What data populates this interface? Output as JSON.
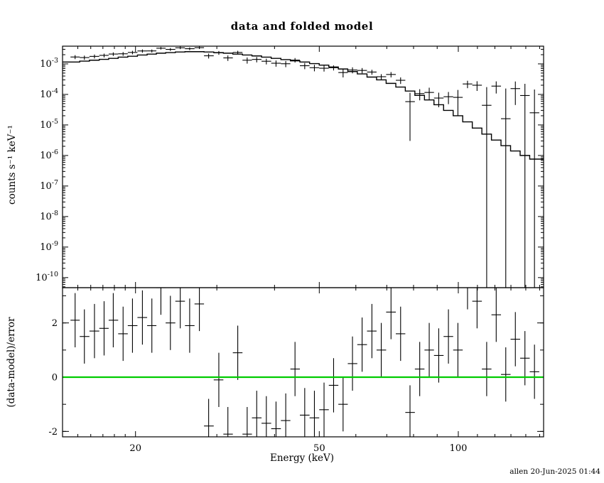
{
  "title": "data and folded model",
  "credit": "allen 20-Jun-2025 01:44",
  "colors": {
    "foreground": "#000000",
    "background": "#ffffff",
    "zero_line": "#00cc00"
  },
  "chart_data": {
    "type": "scatter",
    "title": "data and folded model",
    "xlabel": "Energy (keV)",
    "x_scale": "log",
    "x_range": [
      13.9,
      153.0
    ],
    "x_ticks_labeled": [
      20,
      50,
      100
    ],
    "x_ticks_minor": [
      15,
      16,
      17,
      18,
      19,
      30,
      40,
      60,
      70,
      80,
      90,
      110,
      120,
      130,
      140,
      150
    ],
    "legend": "none",
    "grid": false,
    "top_panel": {
      "ylabel": "counts s⁻¹ keV⁻¹",
      "y_scale": "log",
      "y_range_log10": [
        -10.33,
        -2.42
      ],
      "y_tick_exponents": [
        -3,
        -4,
        -5,
        -6,
        -7,
        -8,
        -9,
        -10
      ],
      "energy": [
        14.8,
        15.5,
        16.3,
        17.1,
        17.9,
        18.8,
        19.7,
        20.7,
        21.7,
        22.7,
        23.8,
        25.0,
        26.2,
        27.5,
        28.8,
        30.3,
        31.7,
        33.3,
        34.9,
        36.6,
        38.4,
        40.3,
        42.3,
        44.3,
        46.5,
        48.8,
        51.2,
        53.7,
        56.3,
        59.0,
        61.9,
        65.0,
        68.1,
        71.5,
        75.0,
        78.6,
        82.5,
        86.5,
        90.7,
        95.2,
        99.8,
        104.7,
        109.8,
        115.2,
        120.8,
        126.7,
        132.9,
        139.4,
        146.2
      ],
      "data": [
        0.00168,
        0.00161,
        0.00176,
        0.0019,
        0.0021,
        0.00214,
        0.00237,
        0.00265,
        0.00266,
        0.00326,
        0.00298,
        0.00337,
        0.00314,
        0.0034,
        0.00184,
        0.00231,
        0.00157,
        0.00237,
        0.00132,
        0.0014,
        0.00122,
        0.00105,
        0.00101,
        0.00133,
        0.00087,
        0.00075,
        0.00072,
        0.00075,
        0.00052,
        0.00063,
        0.00061,
        0.00054,
        0.00038,
        0.00045,
        0.00029,
        5.8e-05,
        0.000106,
        0.000116,
        7.6e-05,
        8.4e-05,
        8e-05,
        0.00022,
        0.0002,
        4.4e-05,
        0.000187,
        1.6e-05,
        0.000155,
        9.2e-05,
        2.5e-05
      ],
      "data_err": [
        0.00025,
        0.00025,
        0.00026,
        0.00027,
        0.00028,
        0.0003,
        0.00031,
        0.00032,
        0.0003,
        0.00031,
        0.00032,
        0.00033,
        0.00033,
        0.00033,
        0.00034,
        0.00033,
        0.00032,
        0.00031,
        0.0003,
        0.00028,
        0.00026,
        0.00024,
        0.00023,
        0.00022,
        0.0002,
        0.00018,
        0.00016,
        0.00014,
        0.00016,
        0.00014,
        0.00012,
        0.0001,
        8e-05,
        9e-05,
        7e-05,
        5.5e-05,
        4.2e-05,
        5e-05,
        3.8e-05,
        3.6e-05,
        6e-05,
        6e-05,
        7e-05,
        0.00013,
        8e-05,
        0.00014,
        0.00011,
        0.00013,
        0.00012
      ],
      "model": [
        0.00115,
        0.00123,
        0.00132,
        0.00141,
        0.00151,
        0.00166,
        0.00178,
        0.00195,
        0.00209,
        0.00224,
        0.00234,
        0.00245,
        0.00251,
        0.00251,
        0.00245,
        0.00234,
        0.00224,
        0.00209,
        0.00195,
        0.00182,
        0.00166,
        0.00151,
        0.00138,
        0.00126,
        0.00115,
        0.00102,
        0.00091,
        0.00079,
        0.00068,
        0.00056,
        0.00047,
        0.00037,
        0.0003,
        0.00023,
        0.000174,
        0.000129,
        9.3e-05,
        6.6e-05,
        4.6e-05,
        3e-05,
        2e-05,
        1.26e-05,
        7.9e-06,
        5e-06,
        3.2e-06,
        2.1e-06,
        1.4e-06,
        1e-06,
        7.6e-07
      ]
    },
    "bottom_panel": {
      "ylabel": "(data-model)/error",
      "y_scale": "linear",
      "y_range": [
        -2.2,
        3.3
      ],
      "y_ticks_labeled": [
        -2,
        0,
        2
      ],
      "y_ticks_minor": [
        -2,
        -1,
        0,
        1,
        2,
        3
      ],
      "residuals": [
        2.1,
        1.5,
        1.7,
        1.8,
        2.1,
        1.6,
        1.9,
        2.2,
        1.9,
        3.3,
        2.0,
        2.8,
        1.9,
        2.7,
        -1.8,
        -0.1,
        -2.1,
        0.9,
        -2.1,
        -1.5,
        -1.7,
        -1.9,
        -1.6,
        0.3,
        -1.4,
        -1.5,
        -1.2,
        -0.3,
        -1.0,
        0.5,
        1.2,
        1.7,
        1.0,
        2.4,
        1.6,
        -1.3,
        0.3,
        1.0,
        0.8,
        1.5,
        1.0,
        3.5,
        2.8,
        0.3,
        2.3,
        0.1,
        1.4,
        0.7,
        0.2
      ],
      "residual_err": 1.0,
      "zero_line_color": "#00cc00"
    }
  }
}
